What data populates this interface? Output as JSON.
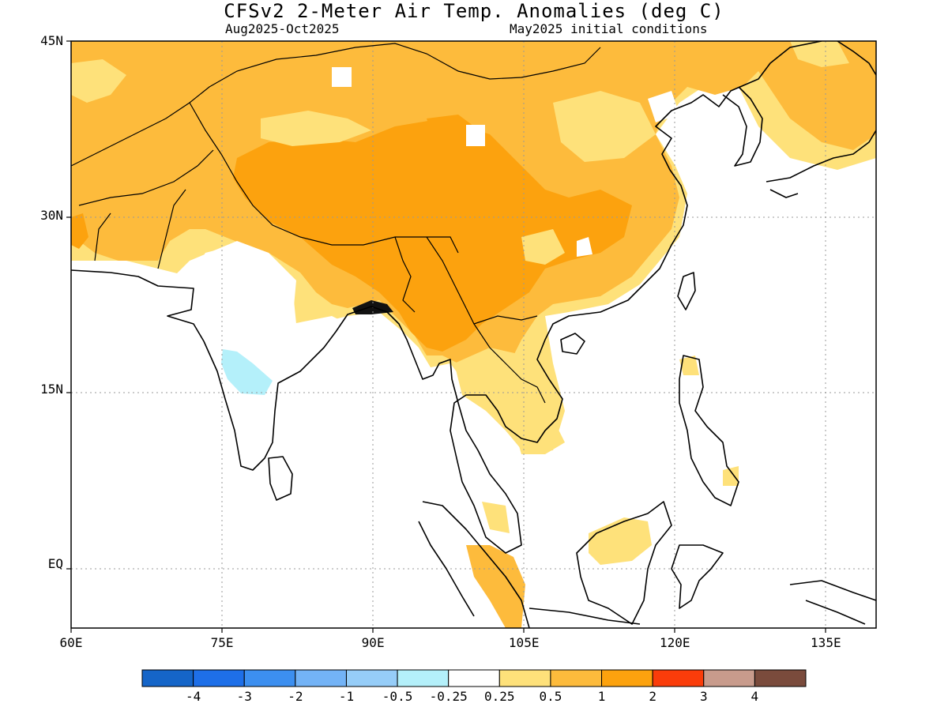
{
  "figure": {
    "title": "CFSv2 2-Meter Air Temp. Anomalies (deg C)",
    "subtitle_left": "Aug2025-Oct2025",
    "subtitle_right": "May2025 initial conditions"
  },
  "map": {
    "lon_range": [
      60,
      140
    ],
    "lat_range": [
      -5.5,
      45
    ],
    "lat_labels": [
      {
        "value": 45,
        "label": "45N"
      },
      {
        "value": 30,
        "label": "30N"
      },
      {
        "value": 15,
        "label": "15N"
      },
      {
        "value": 0,
        "label": "EQ"
      }
    ],
    "lon_labels": [
      {
        "value": 60,
        "label": "60E"
      },
      {
        "value": 75,
        "label": "75E"
      },
      {
        "value": 90,
        "label": "90E"
      },
      {
        "value": 105,
        "label": "105E"
      },
      {
        "value": 120,
        "label": "120E"
      },
      {
        "value": 135,
        "label": "135E"
      }
    ],
    "grid": "dotted"
  },
  "colorbar": {
    "colors": [
      "#1565c8",
      "#1e6fe8",
      "#3c8ff0",
      "#73b3f6",
      "#96cdf8",
      "#b4f0fa",
      "#ffffff",
      "#fee17a",
      "#fdbb3c",
      "#fca20e",
      "#fa3c0a",
      "#c89b8c",
      "#7a4b3c"
    ],
    "labels": [
      "-4",
      "-3",
      "-2",
      "-1",
      "-0.5",
      "-0.25",
      "0.25",
      "0.5",
      "1",
      "2",
      "3",
      "4"
    ]
  },
  "anomaly_colors": {
    "light": "#fee17a",
    "medium": "#fdbb3c",
    "strong": "#fca20e",
    "cool": "#b4f0fa"
  }
}
